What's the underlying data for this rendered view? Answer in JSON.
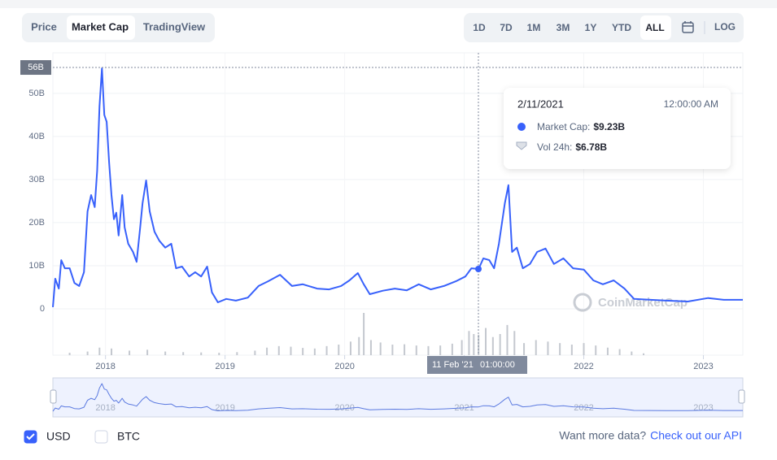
{
  "tabs": [
    "Price",
    "Market Cap",
    "TradingView"
  ],
  "ranges": [
    "1D",
    "7D",
    "1M",
    "3M",
    "1Y",
    "YTD",
    "ALL"
  ],
  "log_label": "LOG",
  "currencies": [
    "USD",
    "BTC"
  ],
  "footer": {
    "prompt": "Want more data?",
    "link": "Check out our API"
  },
  "watermark": "CoinMarketCap",
  "chart_data": {
    "type": "line",
    "xlim": [
      2017.56,
      2023.33
    ],
    "xticks": [
      2018,
      2019,
      2020,
      2021,
      2022,
      2023
    ],
    "ylim": [
      -10.75,
      59.4
    ],
    "yticks": [
      0,
      {
        "value": 10,
        "label": "10B"
      },
      {
        "value": 20,
        "label": "20B"
      },
      {
        "value": 30,
        "label": "30B"
      },
      {
        "value": 40,
        "label": "40B"
      },
      {
        "value": 50,
        "label": "50B"
      }
    ],
    "y2lim": [
      0,
      14
    ],
    "grid": true,
    "crosshair": {
      "y": {
        "value": 56,
        "label": "56B"
      },
      "x_label": "11 Feb '21",
      "time": "01:00:00"
    },
    "tooltip": {
      "date": "2/11/2021",
      "time": "12:00:00 AM",
      "items": [
        {
          "label": "Market Cap:",
          "value": "$9.23B"
        },
        {
          "label": "Vol 24h:",
          "value": "$6.78B"
        }
      ]
    },
    "series": [
      {
        "name": "Market Cap",
        "color": "#3861fb",
        "x": [
          2017.56,
          2017.58,
          2017.61,
          2017.63,
          2017.66,
          2017.7,
          2017.74,
          2017.78,
          2017.82,
          2017.85,
          2017.88,
          2017.91,
          2017.93,
          2017.95,
          2017.97,
          2017.99,
          2018.01,
          2018.03,
          2018.05,
          2018.07,
          2018.09,
          2018.11,
          2018.14,
          2018.16,
          2018.19,
          2018.23,
          2018.26,
          2018.29,
          2018.31,
          2018.34,
          2018.37,
          2018.41,
          2018.45,
          2018.5,
          2018.55,
          2018.59,
          2018.64,
          2018.7,
          2018.75,
          2018.8,
          2018.85,
          2018.89,
          2018.94,
          2019.01,
          2019.09,
          2019.19,
          2019.28,
          2019.36,
          2019.46,
          2019.56,
          2019.65,
          2019.77,
          2019.87,
          2019.97,
          2020.04,
          2020.11,
          2020.16,
          2020.21,
          2020.32,
          2020.42,
          2020.52,
          2020.62,
          2020.72,
          2020.83,
          2020.93,
          2021.01,
          2021.06,
          2021.12,
          2021.16,
          2021.21,
          2021.25,
          2021.29,
          2021.34,
          2021.37,
          2021.4,
          2021.44,
          2021.49,
          2021.55,
          2021.61,
          2021.68,
          2021.75,
          2021.83,
          2021.91,
          2022.0,
          2022.08,
          2022.16,
          2022.25,
          2022.34,
          2022.42,
          2022.56,
          2022.69,
          2022.87,
          2023.04,
          2023.17,
          2023.33
        ],
        "values": [
          0.4,
          7,
          4.7,
          11.3,
          9.4,
          9.4,
          6,
          5.3,
          8.5,
          22.6,
          26.4,
          23.6,
          32,
          47,
          55.8,
          45,
          43.4,
          34,
          26.4,
          20.8,
          22.3,
          17,
          26.4,
          18.9,
          15.1,
          13.2,
          10.9,
          18.9,
          24.5,
          29.8,
          22.6,
          17.9,
          15.8,
          14.2,
          15.1,
          9.4,
          9.8,
          7.5,
          8.5,
          7.5,
          9.8,
          3.8,
          1.5,
          2.3,
          1.9,
          2.6,
          5.3,
          6.4,
          7.9,
          5.3,
          5.7,
          4.7,
          4.5,
          5.3,
          6.6,
          8.3,
          5.7,
          3.4,
          4.2,
          4.7,
          4.3,
          5.7,
          4.5,
          5.3,
          6.4,
          7.5,
          9.4,
          9.23,
          11.7,
          11.3,
          9.4,
          15.1,
          24.5,
          28.7,
          13.2,
          14.2,
          9.4,
          10.4,
          13.2,
          14,
          10.4,
          11.7,
          9.4,
          9.1,
          6.6,
          5.7,
          6.6,
          4.7,
          2.3,
          2.1,
          1.9,
          1.7,
          2.5,
          2.1,
          2.1
        ]
      },
      {
        "name": "Vol 24h",
        "color": "#c4c8cf",
        "axis": "y2",
        "x": [
          2017.7,
          2017.85,
          2017.95,
          2018.05,
          2018.2,
          2018.35,
          2018.5,
          2018.65,
          2018.8,
          2018.95,
          2019.1,
          2019.25,
          2019.35,
          2019.45,
          2019.55,
          2019.65,
          2019.75,
          2019.85,
          2019.95,
          2020.05,
          2020.12,
          2020.16,
          2020.22,
          2020.3,
          2020.4,
          2020.5,
          2020.6,
          2020.7,
          2020.8,
          2020.9,
          2020.98,
          2021.04,
          2021.08,
          2021.12,
          2021.18,
          2021.24,
          2021.3,
          2021.36,
          2021.42,
          2021.5,
          2021.6,
          2021.7,
          2021.8,
          2021.9,
          2022.0,
          2022.1,
          2022.2,
          2022.3,
          2022.4,
          2022.5
        ],
        "values": [
          0.8,
          1.2,
          2.5,
          2.2,
          1.5,
          1.8,
          1.2,
          1.0,
          0.9,
          0.8,
          1.0,
          1.5,
          2.5,
          3,
          2.8,
          2.4,
          2.2,
          3,
          3.5,
          4.5,
          6,
          14,
          5,
          4.2,
          3.5,
          3.6,
          3.2,
          3.0,
          3.2,
          3.8,
          5,
          8,
          7,
          6.78,
          9,
          6,
          7,
          10,
          8,
          4,
          5,
          4.5,
          4,
          3.5,
          4,
          3.2,
          2.5,
          2,
          1.2,
          0.6
        ]
      }
    ]
  }
}
